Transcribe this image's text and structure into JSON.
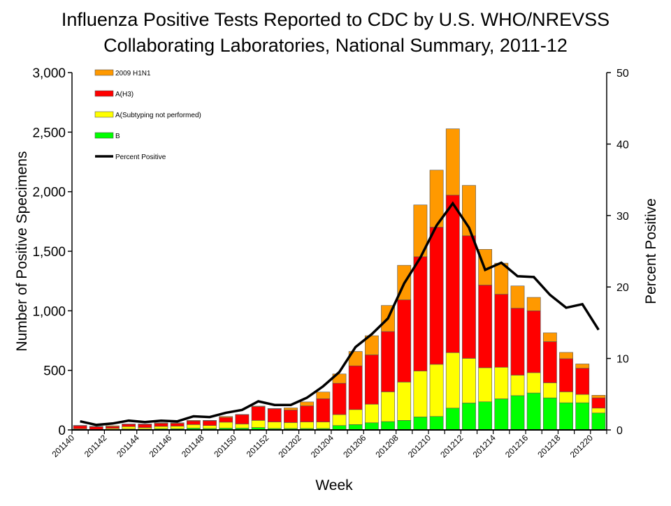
{
  "chart_data": {
    "type": "bar",
    "stacked": true,
    "title_lines": [
      "Influenza Positive Tests Reported to CDC by U.S. WHO/NREVSS",
      "Collaborating Laboratories, National Summary, 2011-12"
    ],
    "xlabel": "Week",
    "ylabel": "Number of Positive Specimens",
    "y2label": "Percent Positive",
    "ylim": [
      0,
      3000
    ],
    "y2lim": [
      0,
      50
    ],
    "yticks": [
      "0",
      "500",
      "1,000",
      "1,500",
      "2,000",
      "2,500",
      "3,000"
    ],
    "y2ticks": [
      "0",
      "10",
      "20",
      "30",
      "40",
      "50"
    ],
    "grid": false,
    "legend_position": "top-left",
    "categories": [
      "201140",
      "201141",
      "201142",
      "201143",
      "201144",
      "201145",
      "201146",
      "201147",
      "201148",
      "201149",
      "201150",
      "201151",
      "201152",
      "201201",
      "201202",
      "201203",
      "201204",
      "201205",
      "201206",
      "201207",
      "201208",
      "201209",
      "201210",
      "201211",
      "201212",
      "201213",
      "201214",
      "201215",
      "201216",
      "201217",
      "201218",
      "201219",
      "201220"
    ],
    "xtick_labels": [
      "201140",
      "201142",
      "201144",
      "201146",
      "201148",
      "201150",
      "201152",
      "201202",
      "201204",
      "201206",
      "201208",
      "201210",
      "201212",
      "201214",
      "201216",
      "201218",
      "201220"
    ],
    "series": [
      {
        "name": "B",
        "color": "#00FF00",
        "values": [
          5,
          3,
          5,
          8,
          8,
          10,
          10,
          15,
          12,
          15,
          15,
          20,
          12,
          12,
          12,
          12,
          37,
          45,
          60,
          70,
          80,
          109,
          113,
          183,
          226,
          236,
          261,
          288,
          310,
          269,
          228,
          228,
          142
        ]
      },
      {
        "name": "A(Subtyping not performed)",
        "color": "#FFFF00",
        "values": [
          5,
          2,
          8,
          20,
          12,
          20,
          22,
          30,
          25,
          50,
          35,
          60,
          55,
          50,
          55,
          55,
          92,
          126,
          156,
          250,
          322,
          386,
          438,
          466,
          375,
          286,
          265,
          172,
          171,
          127,
          92,
          70,
          41
        ]
      },
      {
        "name": "A(H3)",
        "color": "#FF0000",
        "values": [
          25,
          22,
          15,
          20,
          27,
          25,
          23,
          30,
          40,
          40,
          78,
          115,
          110,
          105,
          135,
          195,
          263,
          367,
          414,
          506,
          690,
          959,
          1151,
          1322,
          1029,
          694,
          613,
          562,
          519,
          345,
          278,
          220,
          86
        ]
      },
      {
        "name": "2009 H1N1",
        "color": "#FF9900",
        "values": [
          3,
          3,
          7,
          2,
          3,
          5,
          5,
          5,
          3,
          8,
          2,
          5,
          3,
          18,
          33,
          56,
          78,
          121,
          161,
          219,
          290,
          435,
          479,
          557,
          423,
          300,
          261,
          187,
          113,
          74,
          53,
          36,
          22
        ]
      }
    ],
    "line_series": {
      "name": "Percent Positive",
      "color": "#000000",
      "axis": "right",
      "values": [
        1.2,
        0.7,
        0.9,
        1.3,
        1.1,
        1.3,
        1.2,
        1.9,
        1.8,
        2.4,
        2.8,
        4.0,
        3.5,
        3.5,
        4.5,
        6.1,
        8.1,
        11.6,
        13.4,
        15.6,
        20.5,
        24.1,
        28.6,
        31.7,
        28.3,
        22.4,
        23.4,
        21.5,
        21.4,
        18.9,
        17.1,
        17.6,
        14.0
      ]
    },
    "legend_order": [
      "2009 H1N1",
      "A(H3)",
      "A(Subtyping not performed)",
      "B",
      "Percent Positive"
    ]
  }
}
